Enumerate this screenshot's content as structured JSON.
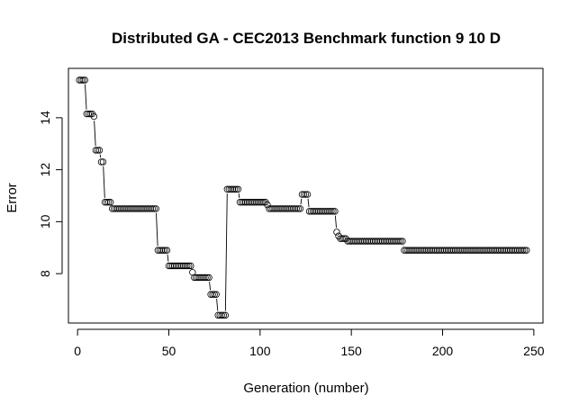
{
  "chart_data": {
    "type": "scatter",
    "title": "Distributed GA - CEC2013 Benchmark function  9 10 D",
    "xlabel": "Generation (number)",
    "ylabel": "Error",
    "xlim": [
      -5,
      255
    ],
    "ylim": [
      6.1,
      15.9
    ],
    "xticks": [
      0,
      50,
      100,
      150,
      200,
      250
    ],
    "yticks": [
      8,
      10,
      12,
      14
    ],
    "xtick_labels": [
      "0",
      "50",
      "100",
      "150",
      "200",
      "250"
    ],
    "ytick_labels": [
      "8",
      "10",
      "12",
      "14"
    ],
    "marker": "open-circle",
    "connected": true,
    "grid": false,
    "legend": "none",
    "series": [
      {
        "segments": [
          {
            "from": 1,
            "to": 5,
            "value": 15.45
          },
          {
            "from": 5,
            "to": 8,
            "value": 14.15
          },
          {
            "from": 9,
            "to": 10,
            "value": 14.05
          },
          {
            "from": 10,
            "to": 13,
            "value": 12.75
          },
          {
            "from": 13,
            "to": 15,
            "value": 12.3
          },
          {
            "from": 15,
            "to": 19,
            "value": 10.75
          },
          {
            "from": 19,
            "to": 44,
            "value": 10.5
          },
          {
            "from": 44,
            "to": 50,
            "value": 8.9
          },
          {
            "from": 50,
            "to": 63,
            "value": 8.3
          },
          {
            "from": 63,
            "to": 64,
            "value": 8.05
          },
          {
            "from": 64,
            "to": 73,
            "value": 7.85
          },
          {
            "from": 73,
            "to": 77,
            "value": 7.2
          },
          {
            "from": 77,
            "to": 82,
            "value": 6.4
          },
          {
            "from": 82,
            "to": 89,
            "value": 11.25
          },
          {
            "from": 89,
            "to": 104,
            "value": 10.75
          },
          {
            "from": 104,
            "to": 105,
            "value": 10.65
          },
          {
            "from": 105,
            "to": 123,
            "value": 10.5
          },
          {
            "from": 123,
            "to": 127,
            "value": 11.05
          },
          {
            "from": 127,
            "to": 142,
            "value": 10.4
          },
          {
            "from": 142,
            "to": 143,
            "value": 9.6
          },
          {
            "from": 143,
            "to": 144,
            "value": 9.45
          },
          {
            "from": 144,
            "to": 148,
            "value": 9.35
          },
          {
            "from": 148,
            "to": 179,
            "value": 9.25
          },
          {
            "from": 179,
            "to": 246,
            "value": 8.9
          }
        ]
      }
    ]
  }
}
